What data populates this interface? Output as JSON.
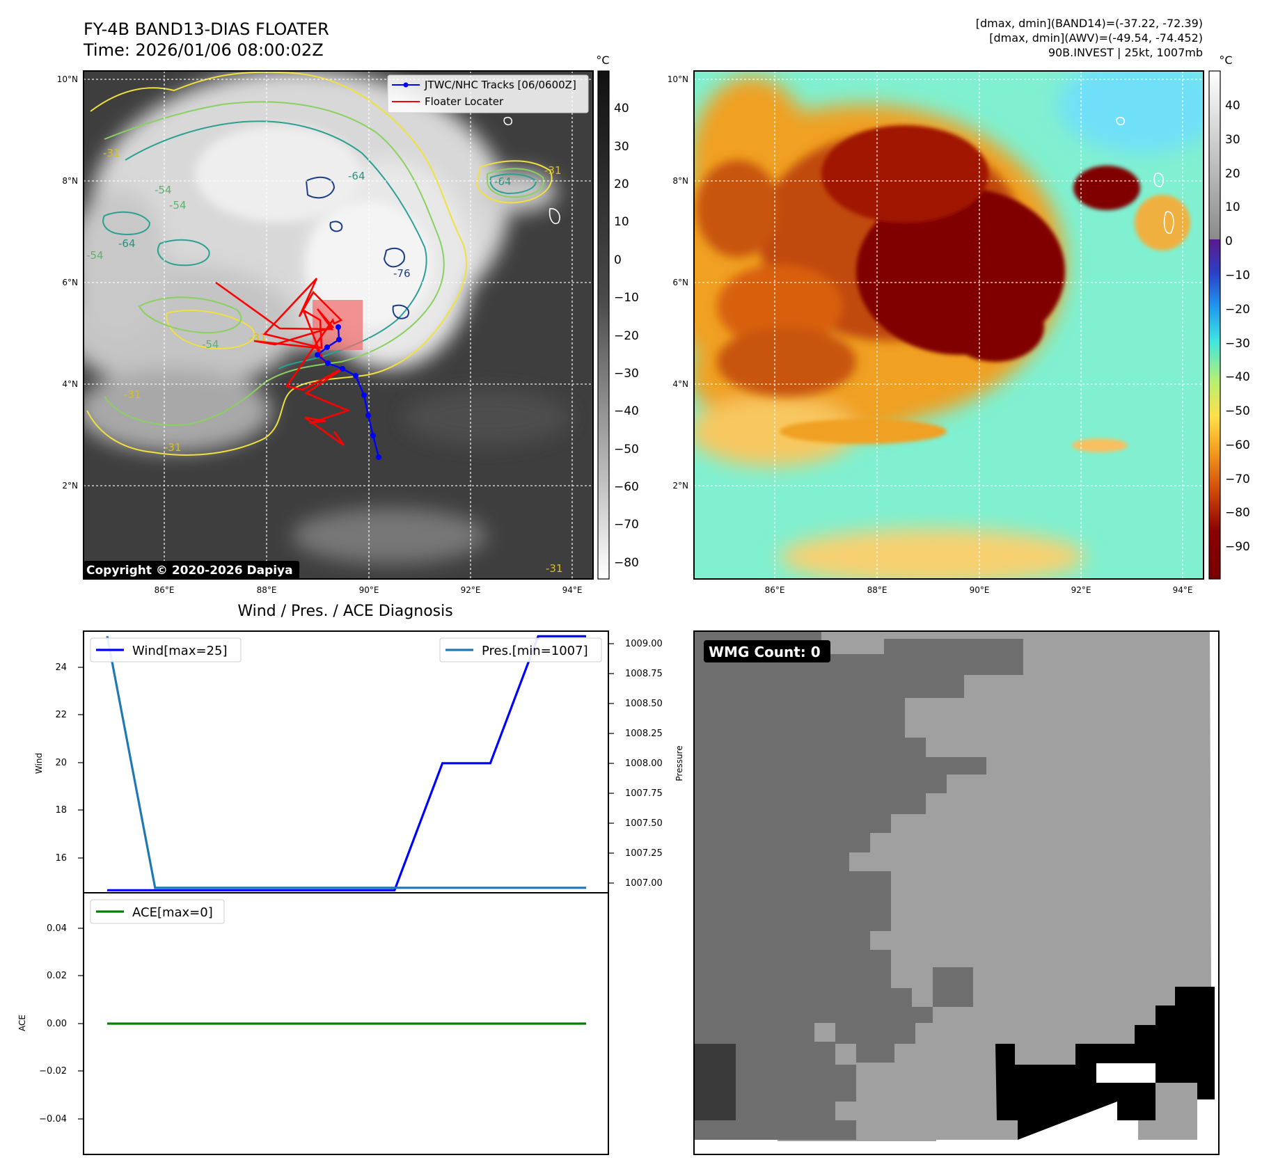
{
  "header": {
    "title": "FY-4B BAND13-DIAS FLOATER",
    "time": "Time: 2026/01/06 08:00:02Z",
    "dmax_band14": "[dmax, dmin](BAND14)=(-37.22, -72.39)",
    "dmax_awv": "[dmax, dmin](AWV)=(-49.54, -74.452)",
    "invest": "90B.INVEST | 25kt, 1007mb"
  },
  "map_axes": {
    "lon_ticks": [
      "86°E",
      "88°E",
      "90°E",
      "92°E",
      "94°E"
    ],
    "lat_ticks": [
      "10°N",
      "8°N",
      "6°N",
      "4°N",
      "2°N"
    ]
  },
  "left_map": {
    "legend": {
      "tracks": "JTWC/NHC Tracks [06/0600Z]",
      "locater": "Floater Locater"
    },
    "contour_labels": [
      "-31",
      "-54",
      "-64",
      "-54",
      "-64",
      "-54",
      "-31",
      "-76",
      "-54",
      "-31",
      "-31",
      "-64",
      "-31",
      "-31"
    ],
    "colorbar": {
      "unit": "°C",
      "ticks": [
        "40",
        "30",
        "20",
        "10",
        "0",
        "−10",
        "−20",
        "−30",
        "−40",
        "−50",
        "−60",
        "−70",
        "−80"
      ]
    },
    "copyright": "Copyright © 2020-2026 Dapiya",
    "track_color": "#0000ff",
    "locater_color": "#ff0000"
  },
  "right_map": {
    "colorbar": {
      "unit": "°C",
      "ticks": [
        "40",
        "30",
        "20",
        "10",
        "0",
        "−10",
        "−20",
        "−30",
        "−40",
        "−50",
        "−60",
        "−70",
        "−80",
        "−90"
      ]
    }
  },
  "diagnosis": {
    "title": "Wind / Pres. / ACE Diagnosis",
    "wind_ylabel": "Wind",
    "pressure_ylabel": "Pressure",
    "ace_ylabel": "ACE",
    "wind_legend": "Wind[max=25]",
    "pres_legend": "Pres.[min=1007]",
    "ace_legend": "ACE[max=0]",
    "wind_ticks": [
      "24",
      "22",
      "20",
      "18",
      "16"
    ],
    "pres_ticks": [
      "1009.00",
      "1008.75",
      "1008.50",
      "1008.25",
      "1008.00",
      "1007.75",
      "1007.50",
      "1007.25",
      "1007.00"
    ],
    "ace_ticks": [
      "0.04",
      "0.02",
      "0.00",
      "−0.02",
      "−0.04"
    ]
  },
  "wmg": {
    "label": "WMG Count: 0"
  },
  "chart_data": {
    "type": "line",
    "wind": {
      "name": "Wind[max=25]",
      "color": "#0000ff",
      "ylim": [
        14.9,
        25.2
      ],
      "values": [
        15,
        15,
        15,
        15,
        15,
        15,
        15,
        20,
        20,
        25,
        25
      ]
    },
    "pressure": {
      "name": "Pres.[min=1007]",
      "color": "#1f77b4",
      "ylim": [
        1006.96,
        1009.04
      ],
      "values": [
        1009,
        1007,
        1007,
        1007,
        1007,
        1007,
        1007,
        1007,
        1007,
        1007,
        1007
      ]
    },
    "ace": {
      "name": "ACE[max=0]",
      "color": "#008000",
      "ylim": [
        -0.055,
        0.055
      ],
      "values": [
        0,
        0,
        0,
        0,
        0,
        0,
        0,
        0,
        0,
        0,
        0
      ]
    }
  }
}
